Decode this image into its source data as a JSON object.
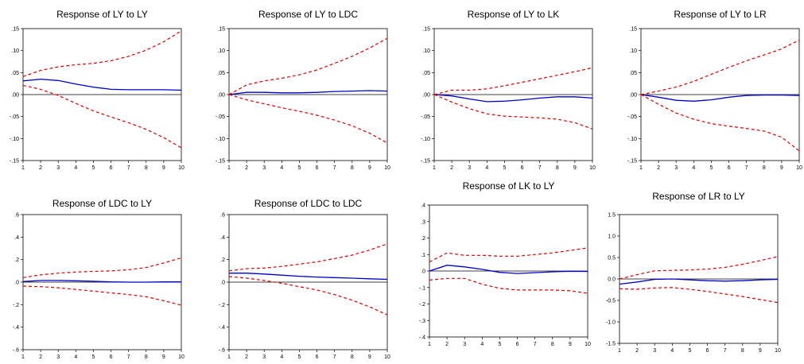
{
  "colors": {
    "response": "#0000cc",
    "band": "#dd0000",
    "zero_line": "#000000",
    "frame": "#000000"
  },
  "chart_data": [
    {
      "type": "line",
      "title": "Response of LY to LY",
      "x": [
        1,
        2,
        3,
        4,
        5,
        6,
        7,
        8,
        9,
        10
      ],
      "xticks": [
        "1",
        "2",
        "3",
        "4",
        "5",
        "6",
        "7",
        "8",
        "9",
        "10"
      ],
      "ylim": [
        -0.15,
        0.15
      ],
      "yticks": [
        -0.15,
        -0.1,
        -0.05,
        0.0,
        0.05,
        0.1,
        0.15
      ],
      "yticklabels": [
        "-.15",
        "-.10",
        "-.05",
        ".00",
        ".05",
        ".10",
        ".15"
      ],
      "series": [
        {
          "role": "response",
          "values": [
            0.031,
            0.035,
            0.032,
            0.024,
            0.017,
            0.012,
            0.011,
            0.011,
            0.011,
            0.01
          ]
        },
        {
          "role": "upper",
          "values": [
            0.041,
            0.055,
            0.063,
            0.068,
            0.071,
            0.077,
            0.087,
            0.101,
            0.12,
            0.145
          ]
        },
        {
          "role": "lower",
          "values": [
            0.021,
            0.012,
            -0.002,
            -0.02,
            -0.037,
            -0.051,
            -0.064,
            -0.079,
            -0.098,
            -0.121
          ]
        }
      ]
    },
    {
      "type": "line",
      "title": "Response of LY to LDC",
      "x": [
        1,
        2,
        3,
        4,
        5,
        6,
        7,
        8,
        9,
        10
      ],
      "xticks": [
        "1",
        "2",
        "3",
        "4",
        "5",
        "6",
        "7",
        "8",
        "9",
        "10"
      ],
      "ylim": [
        -0.15,
        0.15
      ],
      "yticks": [
        -0.15,
        -0.1,
        -0.05,
        0.0,
        0.05,
        0.1,
        0.15
      ],
      "yticklabels": [
        "-.15",
        "-.10",
        "-.05",
        ".00",
        ".05",
        ".10",
        ".15"
      ],
      "series": [
        {
          "role": "response",
          "values": [
            0.0,
            0.005,
            0.005,
            0.004,
            0.004,
            0.005,
            0.007,
            0.008,
            0.009,
            0.008
          ]
        },
        {
          "role": "upper",
          "values": [
            0.0,
            0.022,
            0.031,
            0.037,
            0.045,
            0.056,
            0.071,
            0.087,
            0.106,
            0.128
          ]
        },
        {
          "role": "lower",
          "values": [
            0.0,
            -0.012,
            -0.021,
            -0.03,
            -0.038,
            -0.047,
            -0.058,
            -0.071,
            -0.088,
            -0.11
          ]
        }
      ]
    },
    {
      "type": "line",
      "title": "Response of LY to LK",
      "x": [
        1,
        2,
        3,
        4,
        5,
        6,
        7,
        8,
        9,
        10
      ],
      "xticks": [
        "1",
        "2",
        "3",
        "4",
        "5",
        "6",
        "7",
        "8",
        "9",
        "10"
      ],
      "ylim": [
        -0.15,
        0.15
      ],
      "yticks": [
        -0.15,
        -0.1,
        -0.05,
        0.0,
        0.05,
        0.1,
        0.15
      ],
      "yticklabels": [
        "-.15",
        "-.10",
        "-.05",
        ".00",
        ".05",
        ".10",
        ".15"
      ],
      "series": [
        {
          "role": "response",
          "values": [
            0.0,
            -0.003,
            -0.01,
            -0.016,
            -0.015,
            -0.012,
            -0.008,
            -0.005,
            -0.005,
            -0.008
          ]
        },
        {
          "role": "upper",
          "values": [
            0.0,
            0.01,
            0.01,
            0.013,
            0.02,
            0.028,
            0.036,
            0.044,
            0.052,
            0.061
          ]
        },
        {
          "role": "lower",
          "values": [
            0.0,
            -0.017,
            -0.032,
            -0.044,
            -0.049,
            -0.051,
            -0.053,
            -0.056,
            -0.064,
            -0.078
          ]
        }
      ]
    },
    {
      "type": "line",
      "title": "Response of LY to LR",
      "x": [
        1,
        2,
        3,
        4,
        5,
        6,
        7,
        8,
        9,
        10
      ],
      "xticks": [
        "1",
        "2",
        "3",
        "4",
        "5",
        "6",
        "7",
        "8",
        "9",
        "10"
      ],
      "ylim": [
        -0.15,
        0.15
      ],
      "yticks": [
        -0.15,
        -0.1,
        -0.05,
        0.0,
        0.05,
        0.1,
        0.15
      ],
      "yticklabels": [
        "-.15",
        "-.10",
        "-.05",
        ".00",
        ".05",
        ".10",
        ".15"
      ],
      "series": [
        {
          "role": "response",
          "values": [
            0.0,
            -0.006,
            -0.013,
            -0.015,
            -0.012,
            -0.006,
            -0.002,
            -0.001,
            -0.001,
            -0.002
          ]
        },
        {
          "role": "upper",
          "values": [
            0.0,
            0.008,
            0.017,
            0.03,
            0.046,
            0.062,
            0.077,
            0.09,
            0.104,
            0.124
          ]
        },
        {
          "role": "lower",
          "values": [
            0.0,
            -0.022,
            -0.042,
            -0.056,
            -0.066,
            -0.072,
            -0.077,
            -0.083,
            -0.097,
            -0.128
          ]
        }
      ]
    },
    {
      "type": "line",
      "title": "Response of LDC to LY",
      "x": [
        1,
        2,
        3,
        4,
        5,
        6,
        7,
        8,
        9,
        10
      ],
      "xticks": [
        "1",
        "2",
        "3",
        "4",
        "5",
        "6",
        "7",
        "8",
        "9",
        "10"
      ],
      "ylim": [
        -0.6,
        0.6
      ],
      "yticks": [
        -0.6,
        -0.4,
        -0.2,
        0.0,
        0.2,
        0.4,
        0.6
      ],
      "yticklabels": [
        "-.6",
        "-.4",
        "-.2",
        ".0",
        ".2",
        ".4",
        ".6"
      ],
      "series": [
        {
          "role": "response",
          "values": [
            0.005,
            0.015,
            0.015,
            0.012,
            0.008,
            0.002,
            0.0,
            0.0,
            0.002,
            0.003
          ]
        },
        {
          "role": "upper",
          "values": [
            0.04,
            0.065,
            0.08,
            0.09,
            0.095,
            0.1,
            0.11,
            0.13,
            0.17,
            0.215
          ]
        },
        {
          "role": "lower",
          "values": [
            -0.035,
            -0.04,
            -0.05,
            -0.065,
            -0.08,
            -0.095,
            -0.11,
            -0.13,
            -0.165,
            -0.205
          ]
        }
      ]
    },
    {
      "type": "line",
      "title": "Response of LDC to LDC",
      "x": [
        1,
        2,
        3,
        4,
        5,
        6,
        7,
        8,
        9,
        10
      ],
      "xticks": [
        "1",
        "2",
        "3",
        "4",
        "5",
        "6",
        "7",
        "8",
        "9",
        "10"
      ],
      "ylim": [
        -0.6,
        0.6
      ],
      "yticks": [
        -0.6,
        -0.4,
        -0.2,
        0.0,
        0.2,
        0.4,
        0.6
      ],
      "yticklabels": [
        "-.6",
        "-.4",
        "-.2",
        ".0",
        ".2",
        ".4",
        ".6"
      ],
      "series": [
        {
          "role": "response",
          "values": [
            0.08,
            0.08,
            0.072,
            0.062,
            0.052,
            0.045,
            0.04,
            0.035,
            0.03,
            0.025
          ]
        },
        {
          "role": "upper",
          "values": [
            0.1,
            0.12,
            0.125,
            0.14,
            0.16,
            0.18,
            0.21,
            0.24,
            0.285,
            0.34
          ]
        },
        {
          "role": "lower",
          "values": [
            0.05,
            0.035,
            0.015,
            -0.01,
            -0.04,
            -0.07,
            -0.11,
            -0.16,
            -0.22,
            -0.29
          ]
        }
      ]
    },
    {
      "type": "line",
      "title": "Response of LK to LY",
      "x": [
        1,
        2,
        3,
        4,
        5,
        6,
        7,
        8,
        9,
        10
      ],
      "xticks": [
        "1",
        "2",
        "3",
        "4",
        "5",
        "6",
        "7",
        "8",
        "9",
        "10"
      ],
      "ylim": [
        -0.4,
        0.4
      ],
      "yticks": [
        -0.4,
        -0.3,
        -0.2,
        -0.1,
        0.0,
        0.1,
        0.2,
        0.3,
        0.4
      ],
      "yticklabels": [
        "-.4",
        "-.3",
        "-.2",
        "-.1",
        ".0",
        ".1",
        ".2",
        ".3",
        ".4"
      ],
      "series": [
        {
          "role": "response",
          "values": [
            0.0,
            0.035,
            0.025,
            0.01,
            -0.008,
            -0.015,
            -0.01,
            -0.005,
            -0.002,
            -0.003
          ]
        },
        {
          "role": "upper",
          "values": [
            0.055,
            0.11,
            0.095,
            0.095,
            0.09,
            0.09,
            0.1,
            0.11,
            0.125,
            0.14
          ]
        },
        {
          "role": "lower",
          "values": [
            -0.055,
            -0.045,
            -0.045,
            -0.08,
            -0.105,
            -0.115,
            -0.115,
            -0.115,
            -0.12,
            -0.135
          ]
        }
      ]
    },
    {
      "type": "line",
      "title": "Response of LR to LY",
      "x": [
        1,
        2,
        3,
        4,
        5,
        6,
        7,
        8,
        9,
        10
      ],
      "xticks": [
        "1",
        "2",
        "3",
        "4",
        "5",
        "6",
        "7",
        "8",
        "9",
        "10"
      ],
      "ylim": [
        -1.5,
        1.5
      ],
      "yticks": [
        -1.5,
        -1.0,
        -0.5,
        0.0,
        0.5,
        1.0,
        1.5
      ],
      "yticklabels": [
        "-1.5",
        "-1.0",
        "-0.5",
        "0.0",
        "0.5",
        "1.0",
        "1.5"
      ],
      "series": [
        {
          "role": "response",
          "values": [
            -0.12,
            -0.07,
            -0.01,
            0.0,
            -0.02,
            -0.04,
            -0.05,
            -0.04,
            -0.02,
            -0.01
          ]
        },
        {
          "role": "upper",
          "values": [
            0.0,
            0.1,
            0.19,
            0.2,
            0.21,
            0.23,
            0.27,
            0.34,
            0.43,
            0.52
          ]
        },
        {
          "role": "lower",
          "values": [
            -0.23,
            -0.24,
            -0.21,
            -0.2,
            -0.24,
            -0.29,
            -0.35,
            -0.41,
            -0.48,
            -0.55
          ]
        }
      ]
    }
  ]
}
